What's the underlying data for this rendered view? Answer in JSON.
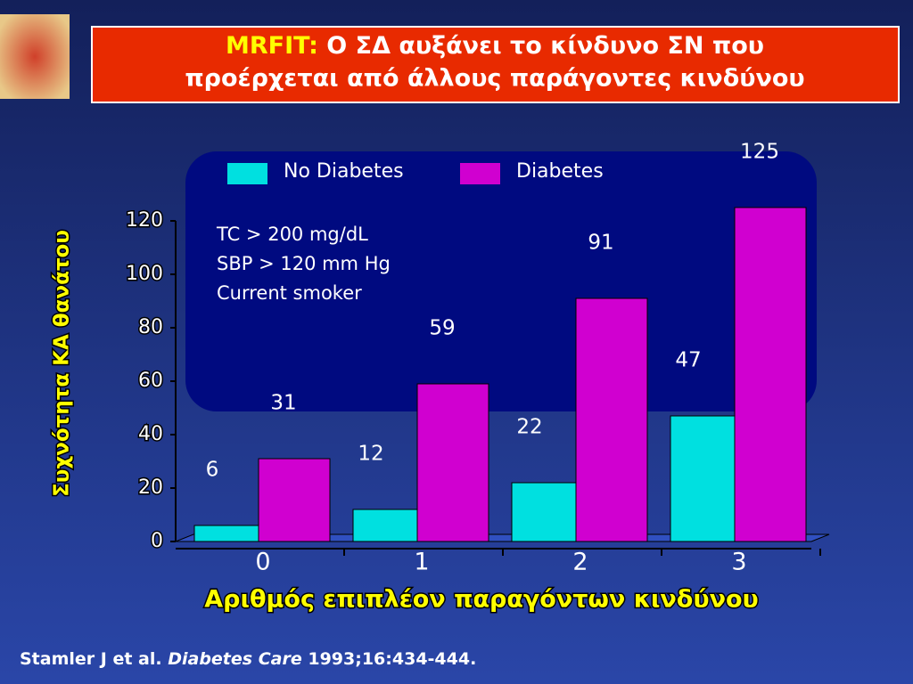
{
  "slide": {
    "title_prefix": "MRFIT:",
    "title_lines": [
      "Ο ΣΔ αυξάνει το κίνδυνο ΣΝ που",
      "προέρχεται από άλλους παράγοντες κινδύνου"
    ],
    "citation": {
      "authors": "Stamler J et al.",
      "journal": "Diabetes Care",
      "details": "1993;16:434-444."
    }
  },
  "chart_data": {
    "type": "bar",
    "x_label": "Αριθμός επιπλέον παραγόντων κινδύνου",
    "y_label": "Συχνότητα ΚΑ θανάτου",
    "categories": [
      "0",
      "1",
      "2",
      "3"
    ],
    "series": [
      {
        "name": "No Diabetes",
        "color": "#00e0e0",
        "values": [
          6,
          12,
          22,
          47
        ]
      },
      {
        "name": "Diabetes",
        "color": "#d000d0",
        "values": [
          31,
          59,
          91,
          125
        ]
      }
    ],
    "ylim": [
      0,
      120
    ],
    "yticks": [
      0,
      20,
      40,
      60,
      80,
      100,
      120
    ],
    "annotations": [
      "TC > 200 mg/dL",
      "SBP > 120 mm Hg",
      "Current smoker"
    ]
  }
}
